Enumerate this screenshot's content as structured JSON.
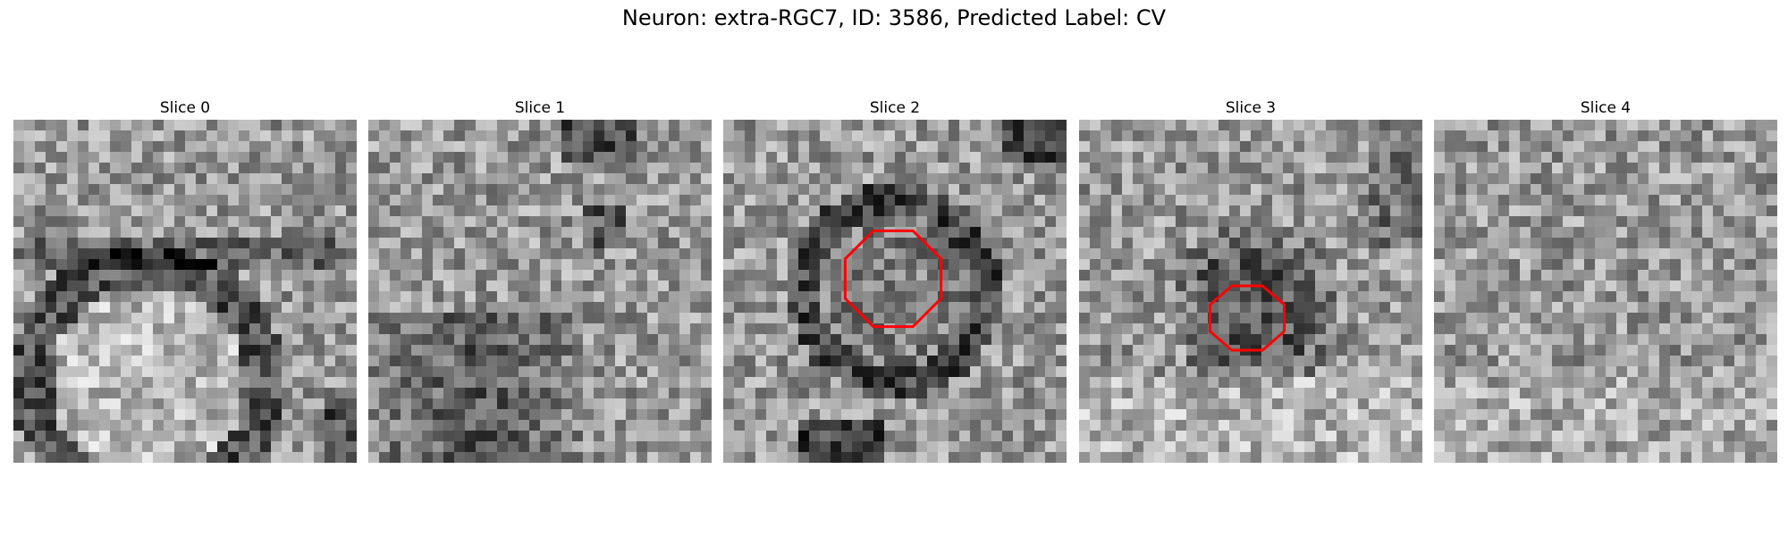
{
  "figure": {
    "title": "Neuron: extra-RGC7, ID: 3586, Predicted Label: CV"
  },
  "panels": [
    {
      "title": "Slice 0",
      "overlay": false,
      "pattern": "ring_bottom"
    },
    {
      "title": "Slice 1",
      "overlay": false,
      "pattern": "dark_bottom"
    },
    {
      "title": "Slice 2",
      "overlay": true,
      "pattern": "dark_ring_center"
    },
    {
      "title": "Slice 3",
      "overlay": true,
      "pattern": "dark_spot_center"
    },
    {
      "title": "Slice 4",
      "overlay": false,
      "pattern": "noise"
    }
  ],
  "colors": {
    "contour": "#ff0000",
    "background": "#ffffff",
    "colormap": "grayscale"
  }
}
